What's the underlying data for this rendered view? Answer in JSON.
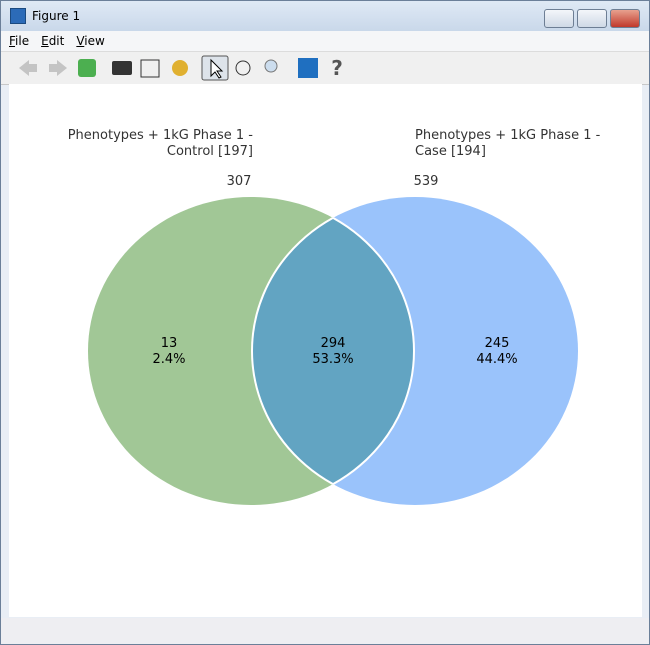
{
  "window": {
    "title": "Figure 1"
  },
  "menu": [
    "File",
    "Edit",
    "View"
  ],
  "venn": {
    "set_labels": [
      {
        "lines": [
          "Phenotypes + 1kG Phase 1 -",
          "Control [197]"
        ],
        "total": "307"
      },
      {
        "lines": [
          "Phenotypes + 1kG Phase 1 -",
          "Case [194]"
        ],
        "total": "539"
      }
    ],
    "regions": [
      {
        "count": "13",
        "percent": "2.4%"
      },
      {
        "count": "294",
        "percent": "53.3%"
      },
      {
        "count": "245",
        "percent": "44.4%"
      }
    ]
  }
}
